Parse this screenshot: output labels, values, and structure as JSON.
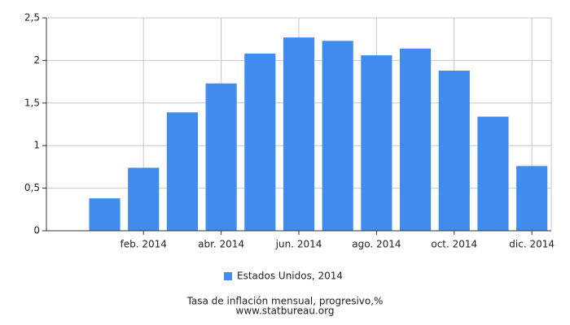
{
  "chart_data": {
    "type": "bar",
    "title": "Tasa de inflación mensual, progresivo,%",
    "source": "www.statbureau.org",
    "categories": [
      null,
      "feb. 2014",
      null,
      "abr. 2014",
      null,
      "jun. 2014",
      null,
      "ago. 2014",
      null,
      "oct. 2014",
      null,
      "dic. 2014"
    ],
    "series": [
      {
        "name": "Estados Unidos, 2014",
        "color": "#428bee",
        "values": [
          0.38,
          0.74,
          1.39,
          1.73,
          2.08,
          2.27,
          2.23,
          2.06,
          2.14,
          1.88,
          1.34,
          0.76
        ]
      }
    ],
    "ylim": [
      0,
      2.5
    ],
    "yticks": [
      0,
      {
        "value": 0.5,
        "label": "0,5"
      },
      1,
      {
        "value": 1.5,
        "label": "1,5"
      },
      2,
      {
        "value": 2.5,
        "label": "2,5"
      }
    ],
    "grid": true
  }
}
